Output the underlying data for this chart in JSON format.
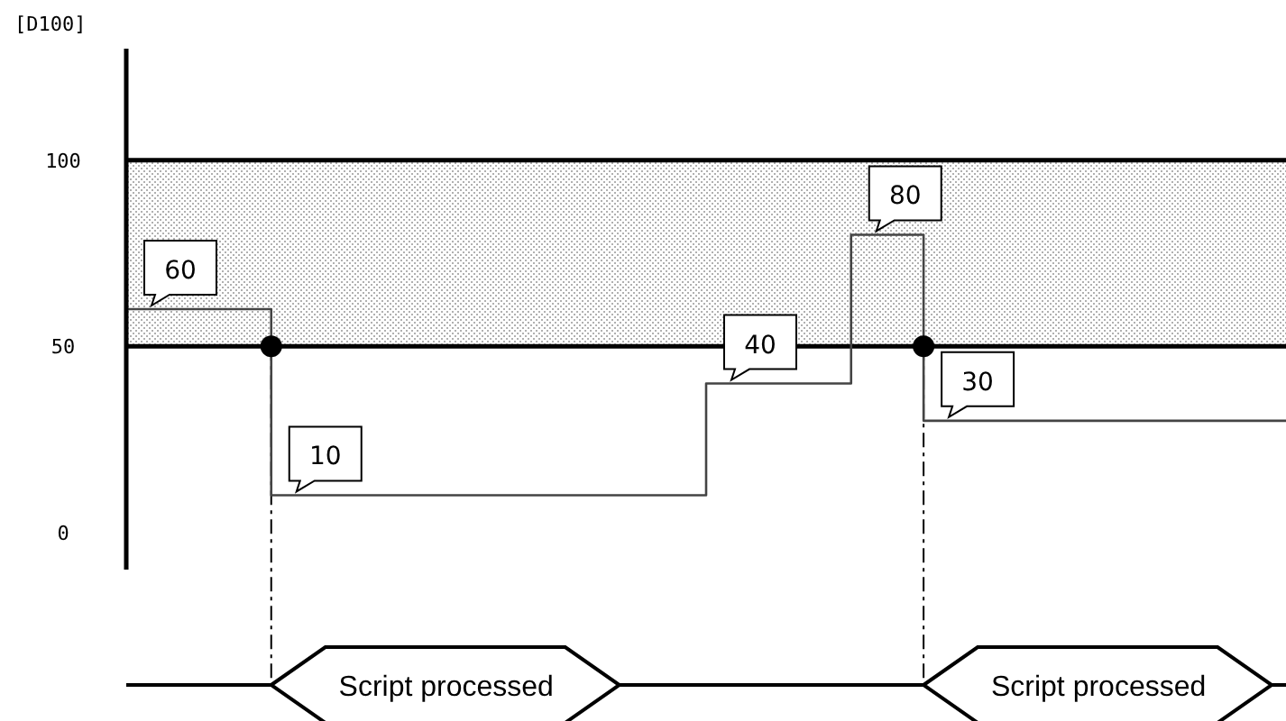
{
  "chart_data": {
    "type": "step",
    "ylabel": "[D100]",
    "ylim": [
      -10,
      130
    ],
    "yticks": [
      0,
      50,
      100
    ],
    "tick_labels": "y",
    "categories": [
      null,
      null,
      null,
      null,
      null,
      null,
      null,
      null,
      null,
      null,
      null,
      null,
      null,
      null,
      null,
      null,
      null
    ],
    "series": [
      {
        "color": "#444444",
        "values": [
          60,
          60,
          10,
          10,
          10,
          10,
          10,
          10,
          40,
          40,
          80,
          30,
          30,
          30,
          30,
          30,
          30
        ],
        "value_labels": [
          "60",
          null,
          "10",
          null,
          null,
          null,
          null,
          null,
          "40",
          null,
          "80",
          "30",
          null,
          null,
          null,
          null,
          null
        ]
      }
    ],
    "bands": [
      {
        "axis": "y",
        "from": 50,
        "to": 100,
        "color": "#b0b0b0"
      }
    ],
    "ref_lines": [
      {
        "axis": "y",
        "value": 50,
        "color": "#000000"
      },
      {
        "axis": "y",
        "value": 100,
        "color": "#000000"
      }
    ],
    "annotations": [
      "Script processed",
      "Script processed"
    ]
  }
}
